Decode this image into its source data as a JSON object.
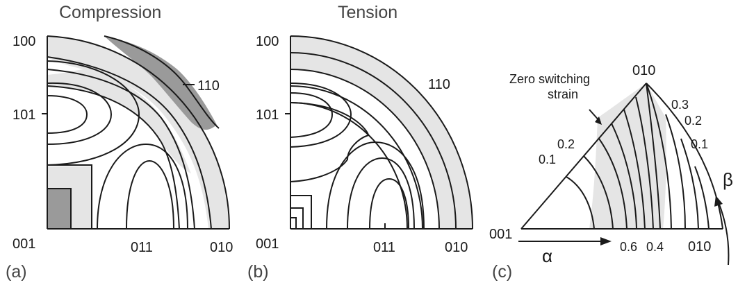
{
  "panels": [
    {
      "id": "a",
      "letter": "(a)",
      "title": "Compression",
      "labels": {
        "top": "100",
        "mid": "101",
        "origin": "001",
        "bottom_mid": "011",
        "bottom_right": "010",
        "arc": "110"
      }
    },
    {
      "id": "b",
      "letter": "(b)",
      "title": "Tension",
      "labels": {
        "top": "100",
        "mid": "101",
        "origin": "001",
        "bottom_mid": "011",
        "bottom_right": "010",
        "arc": "110"
      }
    },
    {
      "id": "c",
      "letter": "(c)",
      "labels": {
        "apex": "010",
        "origin": "001",
        "bottom_right": "010",
        "annotation": [
          "Zero switching",
          "strain"
        ],
        "left_values": [
          "0.1",
          "0.2"
        ],
        "right_values": [
          "0.3",
          "0.2",
          "0.1"
        ],
        "bottom_values": [
          "0.6",
          "0.4"
        ],
        "alpha": "α",
        "beta": "β"
      }
    }
  ],
  "colors": {
    "light_fill": "#e5e5e5",
    "dark_fill": "#9a9a9a",
    "line": "#1a1a1a"
  }
}
